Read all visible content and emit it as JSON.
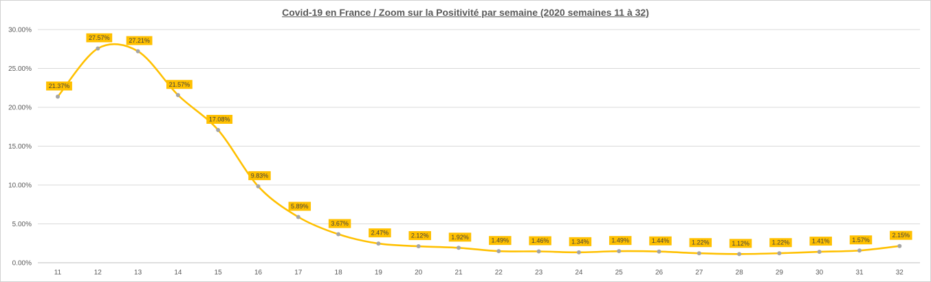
{
  "chart_data": {
    "type": "line",
    "title": "Covid-19 en France / Zoom  sur la Positivité par semaine (2020 semaines 11 à 32)",
    "xlabel": "",
    "ylabel": "",
    "categories": [
      "11",
      "12",
      "13",
      "14",
      "15",
      "16",
      "17",
      "18",
      "19",
      "20",
      "21",
      "22",
      "23",
      "24",
      "25",
      "26",
      "27",
      "28",
      "29",
      "30",
      "31",
      "32"
    ],
    "series": [
      {
        "values": [
          21.37,
          27.57,
          27.21,
          21.57,
          17.08,
          9.83,
          5.89,
          3.67,
          2.47,
          2.12,
          1.92,
          1.49,
          1.46,
          1.34,
          1.49,
          1.44,
          1.22,
          1.12,
          1.22,
          1.41,
          1.57,
          2.15
        ],
        "labels": [
          "21.37%",
          "27.57%",
          "27.21%",
          "21.57%",
          "17.08%",
          "9.83%",
          "5.89%",
          "3.67%",
          "2.47%",
          "2.12%",
          "1.92%",
          "1.49%",
          "1.46%",
          "1.34%",
          "1.49%",
          "1.44%",
          "1.22%",
          "1.12%",
          "1.22%",
          "1.41%",
          "1.57%",
          "2.15%"
        ],
        "line_color": "#FFC000",
        "marker_color": "#A5A5A5",
        "label_bg": "#FFC000"
      }
    ],
    "ylim": [
      0,
      30
    ],
    "yticks": [
      "0.00%",
      "5.00%",
      "10.00%",
      "15.00%",
      "20.00%",
      "25.00%",
      "30.00%"
    ],
    "grid": true,
    "legend": "none"
  }
}
